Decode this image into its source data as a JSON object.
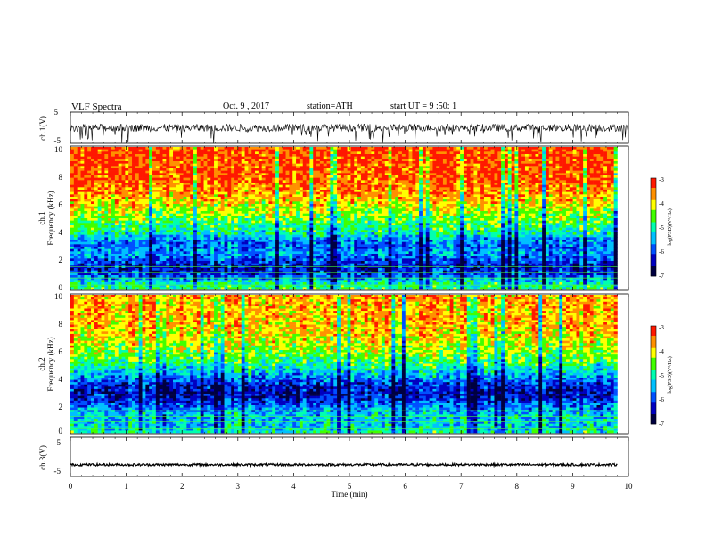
{
  "header": {
    "title": "VLF  Spectra",
    "date": "Oct. 9 , 2017",
    "station": "station=ATH",
    "start_ut": "start  UT  =   9  :50: 1"
  },
  "colormap": [
    "#000000",
    "#0000cc",
    "#0040ff",
    "#00c8ff",
    "#00ff90",
    "#80ff00",
    "#ffff00",
    "#ff8000",
    "#ff0000",
    "#ffffff"
  ],
  "chart_data": [
    {
      "type": "line",
      "name": "ch1-waveform",
      "ylabel": "ch.1(V)",
      "ylim": [
        -5,
        5
      ],
      "yticks": [
        "5",
        "-5"
      ],
      "baseline_v": 0,
      "noise_amplitude_v": 1.2,
      "xlim": [
        0,
        10
      ]
    },
    {
      "type": "heatmap",
      "name": "ch1-spectrogram",
      "ylabel_prefix": "ch.1",
      "ylabel": "Frequency  (kHz)",
      "ylim": [
        0,
        10
      ],
      "yticks": [
        "0",
        "2",
        "4",
        "6",
        "8",
        "10"
      ],
      "xlim": [
        0,
        9.8
      ],
      "colorbar": {
        "label": "log(PSD)(V²/Hz)",
        "range": [
          -7,
          -3
        ],
        "ticks": [
          "-3",
          "-4",
          "-5",
          "-6",
          "-7"
        ]
      },
      "level_profile": [
        {
          "f_khz": 0.1,
          "log_psd": -4.8
        },
        {
          "f_khz": 0.5,
          "log_psd": -5.1
        },
        {
          "f_khz": 1.0,
          "log_psd": -6.0
        },
        {
          "f_khz": 1.5,
          "log_psd": -6.3
        },
        {
          "f_khz": 2.0,
          "log_psd": -6.0
        },
        {
          "f_khz": 2.5,
          "log_psd": -5.6
        },
        {
          "f_khz": 3.0,
          "log_psd": -5.8
        },
        {
          "f_khz": 3.5,
          "log_psd": -5.6
        },
        {
          "f_khz": 4.0,
          "log_psd": -5.0
        },
        {
          "f_khz": 4.5,
          "log_psd": -4.8
        },
        {
          "f_khz": 5.0,
          "log_psd": -4.5
        },
        {
          "f_khz": 5.5,
          "log_psd": -4.3
        },
        {
          "f_khz": 6.0,
          "log_psd": -4.0
        },
        {
          "f_khz": 7.0,
          "log_psd": -3.6
        },
        {
          "f_khz": 8.0,
          "log_psd": -3.4
        },
        {
          "f_khz": 10.0,
          "log_psd": -3.3
        }
      ]
    },
    {
      "type": "heatmap",
      "name": "ch2-spectrogram",
      "ylabel_prefix": "ch.2",
      "ylabel": "Frequency  (kHz)",
      "ylim": [
        0,
        10
      ],
      "yticks": [
        "0",
        "2",
        "4",
        "6",
        "8",
        "10"
      ],
      "xlim": [
        0,
        9.8
      ],
      "colorbar": {
        "label": "log(PSD)(V²/Hz)",
        "range": [
          -7,
          -3
        ],
        "ticks": [
          "-3",
          "-4",
          "-5",
          "-6",
          "-7"
        ]
      },
      "level_profile": [
        {
          "f_khz": 0.1,
          "log_psd": -5.0
        },
        {
          "f_khz": 0.5,
          "log_psd": -5.3
        },
        {
          "f_khz": 1.0,
          "log_psd": -5.3
        },
        {
          "f_khz": 1.5,
          "log_psd": -5.4
        },
        {
          "f_khz": 2.0,
          "log_psd": -5.8
        },
        {
          "f_khz": 2.5,
          "log_psd": -6.2
        },
        {
          "f_khz": 3.0,
          "log_psd": -6.3
        },
        {
          "f_khz": 3.5,
          "log_psd": -6.1
        },
        {
          "f_khz": 4.0,
          "log_psd": -5.6
        },
        {
          "f_khz": 4.5,
          "log_psd": -5.2
        },
        {
          "f_khz": 5.0,
          "log_psd": -4.8
        },
        {
          "f_khz": 6.0,
          "log_psd": -4.3
        },
        {
          "f_khz": 7.0,
          "log_psd": -4.0
        },
        {
          "f_khz": 8.0,
          "log_psd": -3.8
        },
        {
          "f_khz": 10.0,
          "log_psd": -3.7
        }
      ]
    },
    {
      "type": "line",
      "name": "ch3-waveform",
      "ylabel": "ch.3(V)",
      "ylim": [
        -5,
        5
      ],
      "yticks": [
        "5",
        "-5"
      ],
      "baseline_v": -2,
      "noise_amplitude_v": 0.3,
      "xlim": [
        0,
        9.8
      ],
      "xlabel": "Time  (min)",
      "xticks": [
        "0",
        "1",
        "2",
        "3",
        "4",
        "5",
        "6",
        "7",
        "8",
        "9",
        "10"
      ]
    }
  ]
}
